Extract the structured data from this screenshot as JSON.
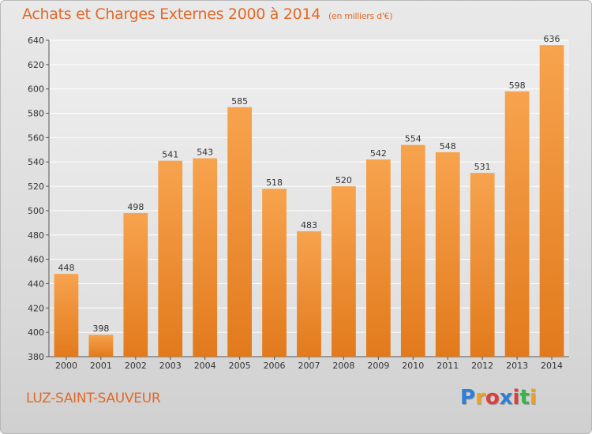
{
  "header": {
    "title": "Achats et Charges Externes 2000 à 2014",
    "unit": "(en milliers d'€)"
  },
  "footer": {
    "commune": "LUZ-SAINT-SAUVEUR",
    "logo_letters": [
      "P",
      "r",
      "o",
      "x",
      "i",
      "t",
      "i"
    ],
    "logo_colors": [
      "#2f7fd6",
      "#f0a020",
      "#e03c3c",
      "#2f7fd6",
      "#e03c3c",
      "#38b24a",
      "#f0a020"
    ]
  },
  "colors": {
    "bar_light": "#f7a34e",
    "bar_dark": "#e27a1c",
    "accent": "#e06a2a"
  },
  "chart_data": {
    "type": "bar",
    "categories": [
      "2000",
      "2001",
      "2002",
      "2003",
      "2004",
      "2005",
      "2006",
      "2007",
      "2008",
      "2009",
      "2010",
      "2011",
      "2012",
      "2013",
      "2014"
    ],
    "values": [
      448,
      398,
      498,
      541,
      543,
      585,
      518,
      483,
      520,
      542,
      554,
      548,
      531,
      598,
      636
    ],
    "ylim": [
      380,
      640
    ],
    "yticks": [
      380,
      400,
      420,
      440,
      460,
      480,
      500,
      520,
      540,
      560,
      580,
      600,
      620,
      640
    ],
    "grid": true
  }
}
